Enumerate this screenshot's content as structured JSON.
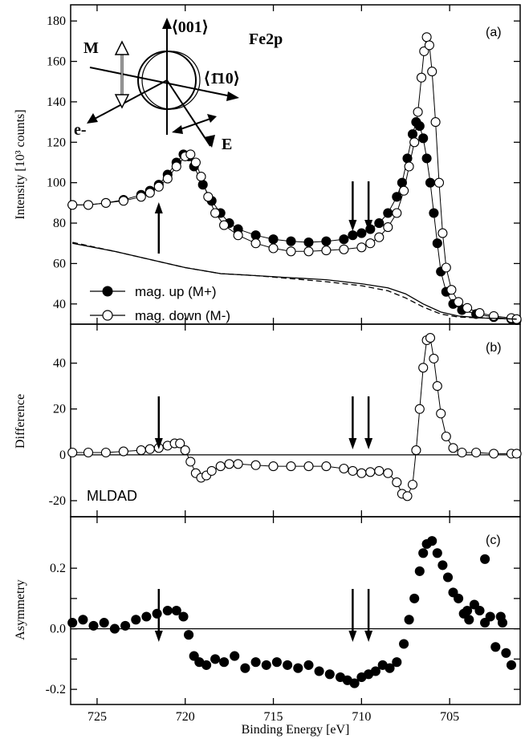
{
  "chart_data": [
    {
      "type": "scatter",
      "panel": "(a)",
      "ylabel": "Intensity [10³ counts]",
      "xlim": [
        726.5,
        701.0
      ],
      "ylim": [
        30,
        188
      ],
      "yticks": [
        40,
        60,
        80,
        100,
        120,
        140,
        160,
        180
      ],
      "inset_label": "Fe2p",
      "schematic_labels": {
        "M": "M",
        "e": "e-",
        "E": "E",
        "d001": "⟨001⟩",
        "d110": "⟨1̄10⟩"
      },
      "series": [
        {
          "name": "mag.  up   (M+)",
          "marker": "filled-circle",
          "points": [
            [
              726.4,
              89
            ],
            [
              725.5,
              89
            ],
            [
              724.5,
              90
            ],
            [
              723.5,
              91.5
            ],
            [
              722.5,
              94
            ],
            [
              722,
              96
            ],
            [
              721.5,
              99
            ],
            [
              721,
              104
            ],
            [
              720.5,
              110
            ],
            [
              720.1,
              114
            ],
            [
              719.8,
              113
            ],
            [
              719.5,
              108
            ],
            [
              719,
              99
            ],
            [
              718.5,
              91
            ],
            [
              718,
              85
            ],
            [
              717.5,
              80
            ],
            [
              717,
              77
            ],
            [
              716,
              74
            ],
            [
              715,
              72
            ],
            [
              714,
              71
            ],
            [
              713,
              70.5
            ],
            [
              712,
              71
            ],
            [
              711,
              72
            ],
            [
              710.5,
              74
            ],
            [
              710,
              75
            ],
            [
              709.5,
              77
            ],
            [
              709,
              80
            ],
            [
              708.5,
              85
            ],
            [
              708,
              93
            ],
            [
              707.7,
              100
            ],
            [
              707.4,
              112
            ],
            [
              707.1,
              124
            ],
            [
              706.9,
              130
            ],
            [
              706.7,
              128
            ],
            [
              706.5,
              122
            ],
            [
              706.3,
              112
            ],
            [
              706.1,
              100
            ],
            [
              705.9,
              85
            ],
            [
              705.7,
              70
            ],
            [
              705.5,
              56
            ],
            [
              705.2,
              46
            ],
            [
              704.8,
              40
            ],
            [
              704.3,
              37
            ],
            [
              703.5,
              35
            ],
            [
              702.5,
              33.5
            ],
            [
              701.5,
              32.5
            ],
            [
              701.2,
              32
            ]
          ]
        },
        {
          "name": "mag. down (M-)",
          "marker": "open-circle",
          "points": [
            [
              726.4,
              89
            ],
            [
              725.5,
              89
            ],
            [
              724.5,
              90
            ],
            [
              723.5,
              91
            ],
            [
              722.5,
              93
            ],
            [
              722,
              95
            ],
            [
              721.5,
              98
            ],
            [
              721,
              102
            ],
            [
              720.5,
              108
            ],
            [
              720,
              113
            ],
            [
              719.7,
              114
            ],
            [
              719.4,
              110
            ],
            [
              719.1,
              103
            ],
            [
              718.7,
              93
            ],
            [
              718.3,
              85
            ],
            [
              717.8,
              79
            ],
            [
              717,
              74
            ],
            [
              716,
              70
            ],
            [
              715,
              67.5
            ],
            [
              714,
              66
            ],
            [
              713,
              66
            ],
            [
              712,
              66.5
            ],
            [
              711,
              67
            ],
            [
              710,
              68
            ],
            [
              709.5,
              70
            ],
            [
              709,
              73
            ],
            [
              708.5,
              78
            ],
            [
              708,
              85
            ],
            [
              707.6,
              96
            ],
            [
              707.3,
              108
            ],
            [
              707,
              120
            ],
            [
              706.8,
              135
            ],
            [
              706.6,
              152
            ],
            [
              706.45,
              165
            ],
            [
              706.3,
              172
            ],
            [
              706.15,
              168
            ],
            [
              706,
              155
            ],
            [
              705.8,
              130
            ],
            [
              705.6,
              100
            ],
            [
              705.4,
              75
            ],
            [
              705.2,
              58
            ],
            [
              704.9,
              47
            ],
            [
              704.5,
              41
            ],
            [
              704,
              38
            ],
            [
              703.3,
              35.5
            ],
            [
              702.5,
              34
            ],
            [
              701.5,
              33
            ],
            [
              701.2,
              32.5
            ]
          ]
        },
        {
          "name": "",
          "marker": "solid-line",
          "points": [
            [
              726.4,
              70
            ],
            [
              724,
              66
            ],
            [
              722,
              62
            ],
            [
              720,
              58
            ],
            [
              718,
              55
            ],
            [
              716,
              54
            ],
            [
              714,
              53
            ],
            [
              712,
              52
            ],
            [
              710,
              50
            ],
            [
              708.5,
              48
            ],
            [
              707.5,
              45
            ],
            [
              706.5,
              40
            ],
            [
              705.5,
              36
            ],
            [
              704.5,
              34
            ],
            [
              703,
              33
            ],
            [
              701.2,
              32.5
            ]
          ]
        },
        {
          "name": "",
          "marker": "dashed-line",
          "points": [
            [
              726.4,
              70.5
            ],
            [
              724,
              66
            ],
            [
              722,
              62
            ],
            [
              720,
              58
            ],
            [
              718,
              55
            ],
            [
              716,
              54
            ],
            [
              714,
              52.5
            ],
            [
              712,
              51
            ],
            [
              710,
              49
            ],
            [
              708.5,
              46.5
            ],
            [
              707.5,
              43
            ],
            [
              706.5,
              38.5
            ],
            [
              705.5,
              35
            ],
            [
              704.5,
              33.5
            ],
            [
              703,
              33
            ],
            [
              701.2,
              32.5
            ]
          ]
        }
      ],
      "arrows_x": [
        721.5,
        710.5,
        709.6
      ]
    },
    {
      "type": "scatter",
      "panel": "(b)",
      "ylabel": "Difference",
      "annotation": "MLDAD",
      "xlim": [
        726.5,
        701.0
      ],
      "ylim": [
        -27,
        57
      ],
      "yticks": [
        -20,
        0,
        20,
        40
      ],
      "series": [
        {
          "name": "",
          "marker": "open-circle",
          "points": [
            [
              726.4,
              1
            ],
            [
              725.5,
              1
            ],
            [
              724.5,
              1
            ],
            [
              723.5,
              1.5
            ],
            [
              722.5,
              2
            ],
            [
              722,
              2.5
            ],
            [
              721.5,
              3
            ],
            [
              721,
              4
            ],
            [
              720.6,
              5
            ],
            [
              720.3,
              5
            ],
            [
              720,
              2
            ],
            [
              719.7,
              -3
            ],
            [
              719.4,
              -8
            ],
            [
              719.1,
              -10
            ],
            [
              718.8,
              -9
            ],
            [
              718.5,
              -7
            ],
            [
              718,
              -5
            ],
            [
              717.5,
              -4
            ],
            [
              717,
              -4
            ],
            [
              716,
              -4.5
            ],
            [
              715,
              -5
            ],
            [
              714,
              -5
            ],
            [
              713,
              -5
            ],
            [
              712,
              -5
            ],
            [
              711,
              -6
            ],
            [
              710.5,
              -7
            ],
            [
              710,
              -8
            ],
            [
              709.5,
              -7.5
            ],
            [
              709,
              -7
            ],
            [
              708.5,
              -8
            ],
            [
              708,
              -12
            ],
            [
              707.7,
              -17
            ],
            [
              707.4,
              -18
            ],
            [
              707.1,
              -13
            ],
            [
              706.9,
              2
            ],
            [
              706.7,
              20
            ],
            [
              706.5,
              38
            ],
            [
              706.3,
              50
            ],
            [
              706.1,
              51
            ],
            [
              705.9,
              42
            ],
            [
              705.7,
              30
            ],
            [
              705.5,
              18
            ],
            [
              705.2,
              8
            ],
            [
              704.8,
              3
            ],
            [
              704.3,
              1
            ],
            [
              703.5,
              1
            ],
            [
              702.5,
              0.5
            ],
            [
              701.5,
              0.5
            ],
            [
              701.2,
              0.5
            ]
          ]
        }
      ],
      "arrows_x": [
        721.5,
        710.5,
        709.6
      ]
    },
    {
      "type": "scatter",
      "panel": "(c)",
      "ylabel": "Asymmetry",
      "xlabel": "Binding Energy [eV]",
      "xlim": [
        726.5,
        701.0
      ],
      "ylim": [
        -0.25,
        0.37
      ],
      "xticks": [
        725,
        720,
        715,
        710,
        705
      ],
      "yticks": [
        -0.2,
        -0.1,
        0.0,
        0.1,
        0.2
      ],
      "ytick_labels": [
        "-0.2",
        "",
        "0.0",
        "",
        "0.2"
      ],
      "series": [
        {
          "name": "",
          "marker": "filled-circle",
          "points": [
            [
              726.4,
              0.02
            ],
            [
              725.8,
              0.03
            ],
            [
              725.2,
              0.01
            ],
            [
              724.6,
              0.02
            ],
            [
              724,
              0.0
            ],
            [
              723.4,
              0.01
            ],
            [
              722.8,
              0.03
            ],
            [
              722.2,
              0.04
            ],
            [
              721.6,
              0.05
            ],
            [
              721,
              0.06
            ],
            [
              720.5,
              0.06
            ],
            [
              720.1,
              0.04
            ],
            [
              719.8,
              -0.02
            ],
            [
              719.5,
              -0.09
            ],
            [
              719.2,
              -0.11
            ],
            [
              718.8,
              -0.12
            ],
            [
              718.3,
              -0.1
            ],
            [
              717.8,
              -0.11
            ],
            [
              717.2,
              -0.09
            ],
            [
              716.6,
              -0.13
            ],
            [
              716,
              -0.11
            ],
            [
              715.4,
              -0.12
            ],
            [
              714.8,
              -0.11
            ],
            [
              714.2,
              -0.12
            ],
            [
              713.6,
              -0.13
            ],
            [
              713,
              -0.12
            ],
            [
              712.4,
              -0.14
            ],
            [
              711.8,
              -0.15
            ],
            [
              711.2,
              -0.16
            ],
            [
              710.8,
              -0.17
            ],
            [
              710.4,
              -0.18
            ],
            [
              710,
              -0.16
            ],
            [
              709.6,
              -0.15
            ],
            [
              709.2,
              -0.14
            ],
            [
              708.8,
              -0.12
            ],
            [
              708.4,
              -0.13
            ],
            [
              708,
              -0.11
            ],
            [
              707.6,
              -0.05
            ],
            [
              707.3,
              0.03
            ],
            [
              707,
              0.1
            ],
            [
              706.7,
              0.19
            ],
            [
              706.5,
              0.25
            ],
            [
              706.3,
              0.28
            ],
            [
              706,
              0.29
            ],
            [
              705.7,
              0.25
            ],
            [
              705.4,
              0.21
            ],
            [
              705.1,
              0.17
            ],
            [
              704.8,
              0.12
            ],
            [
              704.5,
              0.1
            ],
            [
              704.2,
              0.05
            ],
            [
              703.9,
              0.03
            ],
            [
              703.6,
              0.08
            ],
            [
              703.3,
              0.06
            ],
            [
              703,
              0.02
            ],
            [
              702.7,
              0.04
            ],
            [
              702.4,
              -0.06
            ],
            [
              702.1,
              0.04
            ],
            [
              701.8,
              -0.08
            ],
            [
              701.5,
              -0.12
            ],
            [
              703.0,
              0.23
            ],
            [
              704.0,
              0.06
            ],
            [
              702.0,
              0.02
            ]
          ]
        }
      ],
      "arrows_x": [
        721.5,
        710.5,
        709.6
      ]
    }
  ]
}
